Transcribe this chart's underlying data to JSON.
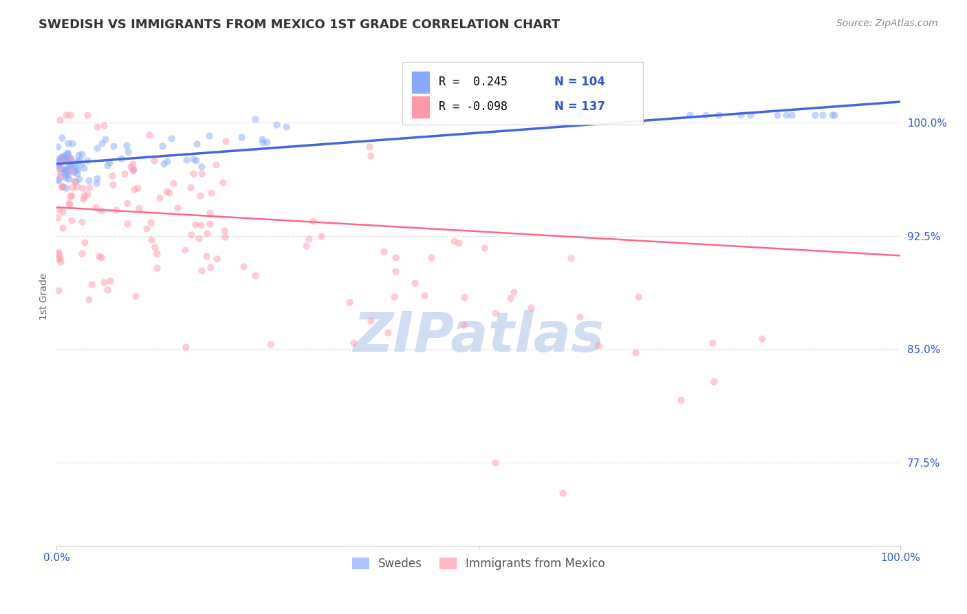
{
  "title": "SWEDISH VS IMMIGRANTS FROM MEXICO 1ST GRADE CORRELATION CHART",
  "source": "Source: ZipAtlas.com",
  "ylabel": "1st Grade",
  "yticks": [
    0.775,
    0.85,
    0.925,
    1.0
  ],
  "ytick_labels": [
    "77.5%",
    "85.0%",
    "92.5%",
    "100.0%"
  ],
  "xlim": [
    0.0,
    1.0
  ],
  "ylim": [
    0.72,
    1.05
  ],
  "legend_swedes": "Swedes",
  "legend_immigrants": "Immigrants from Mexico",
  "R_swedes": 0.245,
  "N_swedes": 104,
  "R_immigrants": -0.098,
  "N_immigrants": 137,
  "blue_color": "#88aaff",
  "pink_color": "#ff99aa",
  "blue_line_color": "#4466dd",
  "pink_line_color": "#ff6688",
  "title_color": "#333333",
  "axis_label_color": "#3355cc",
  "watermark_color": "#c8d8f0",
  "background_color": "#ffffff",
  "grid_color": "#dddddd",
  "annotation_color": "#3355cc"
}
